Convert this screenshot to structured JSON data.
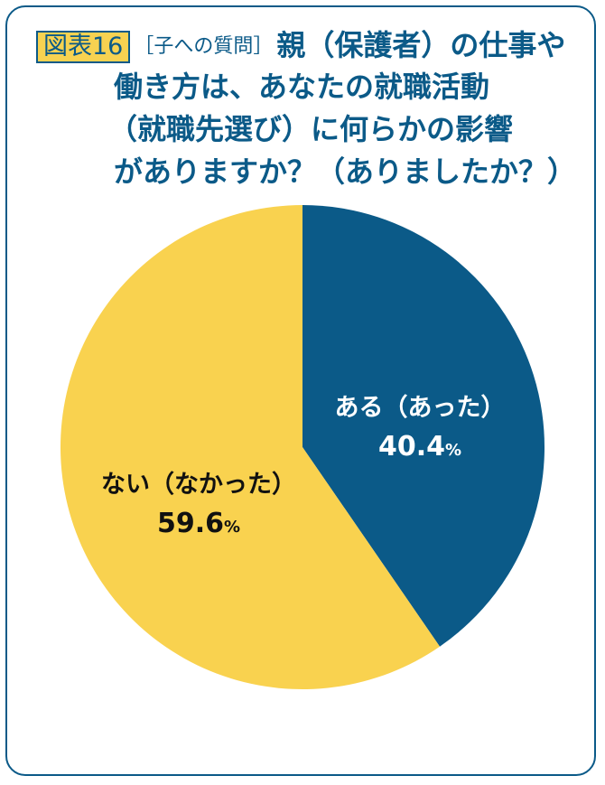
{
  "header": {
    "badge": "図表16",
    "sub_question": "［子への質問］",
    "title_line1": "親（保護者）の仕事や",
    "title_line2": "働き方は、あなたの就職活動",
    "title_line3": "（就職先選び）に何らかの影響",
    "title_line4": "がありますか？（ありましたか？）"
  },
  "chart_data": {
    "type": "pie",
    "slices": [
      {
        "label": "ある（あった）",
        "value": 40.4,
        "value_text": "40.4",
        "unit": "%",
        "color": "#0b5a88",
        "text_color": "#ffffff"
      },
      {
        "label": "ない（なかった）",
        "value": 59.6,
        "value_text": "59.6",
        "unit": "%",
        "color": "#f9d24f",
        "text_color": "#111111"
      }
    ],
    "start_angle": "12 o'clock",
    "direction": "clockwise",
    "legend": "none"
  }
}
